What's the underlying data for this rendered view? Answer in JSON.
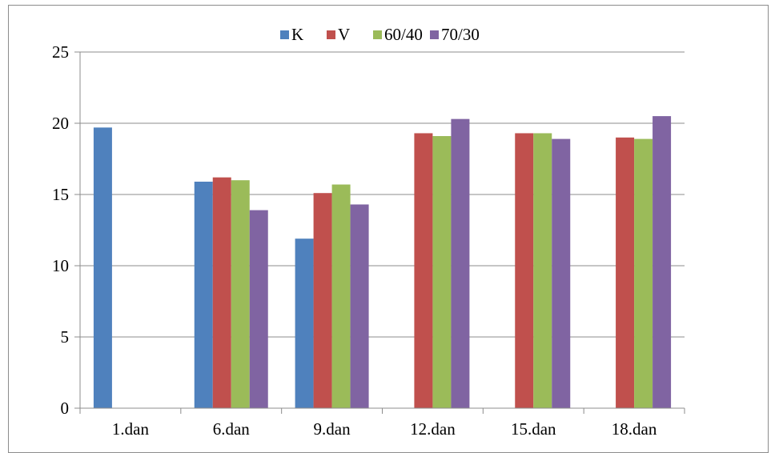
{
  "chart_data": {
    "type": "bar",
    "categories": [
      "1.dan",
      "6.dan",
      "9.dan",
      "12.dan",
      "15.dan",
      "18.dan"
    ],
    "series": [
      {
        "name": "K",
        "color": "#4f81bd",
        "values": [
          19.7,
          15.9,
          11.9,
          null,
          null,
          null
        ]
      },
      {
        "name": "V",
        "color": "#c0504d",
        "values": [
          null,
          16.2,
          15.1,
          19.3,
          19.3,
          19.0
        ]
      },
      {
        "name": "60/40",
        "color": "#9bbb59",
        "values": [
          null,
          16.0,
          15.7,
          19.1,
          19.3,
          18.9
        ]
      },
      {
        "name": "70/30",
        "color": "#8064a2",
        "values": [
          null,
          13.9,
          14.3,
          20.3,
          18.9,
          20.5
        ]
      }
    ],
    "yticks": [
      "0",
      "5",
      "10",
      "15",
      "20",
      "25"
    ],
    "ylim": [
      0,
      25
    ],
    "grid": true,
    "legend_position": "top-center",
    "title": "",
    "xlabel": "",
    "ylabel": ""
  }
}
